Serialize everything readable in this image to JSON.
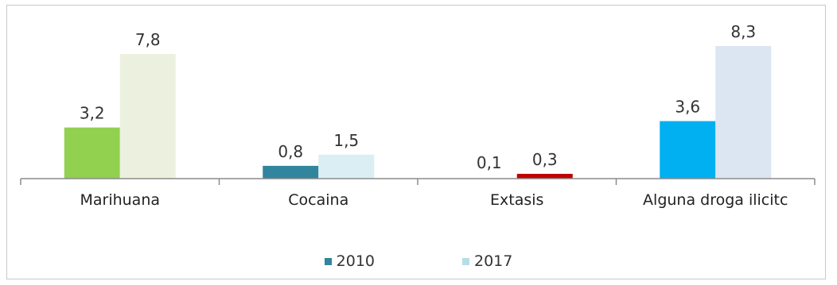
{
  "chart_data": {
    "type": "bar",
    "categories": [
      "Marihuana",
      "Cocaina",
      "Extasis",
      "Alguna droga ilicitc"
    ],
    "series": [
      {
        "name": "2010",
        "values": [
          3.2,
          0.8,
          0.1,
          3.6
        ],
        "labels": [
          "3,2",
          "0,8",
          "0,1",
          "3,6"
        ]
      },
      {
        "name": "2017",
        "values": [
          7.8,
          1.5,
          0.3,
          8.3
        ],
        "labels": [
          "7,8",
          "1,5",
          "0,3",
          "8,3"
        ]
      }
    ],
    "bar_colors": [
      [
        "#92d050",
        "#ebf1de"
      ],
      [
        "#31859c",
        "#dbeef3"
      ],
      [
        "#ffffff",
        "#c00000"
      ],
      [
        "#00b0f0",
        "#dce6f2"
      ]
    ],
    "legend_colors": {
      "2010": "#31859c",
      "2017": "#b7dde8"
    },
    "ylim": [
      0,
      8.3
    ],
    "grid": false,
    "legend_position": "bottom"
  }
}
